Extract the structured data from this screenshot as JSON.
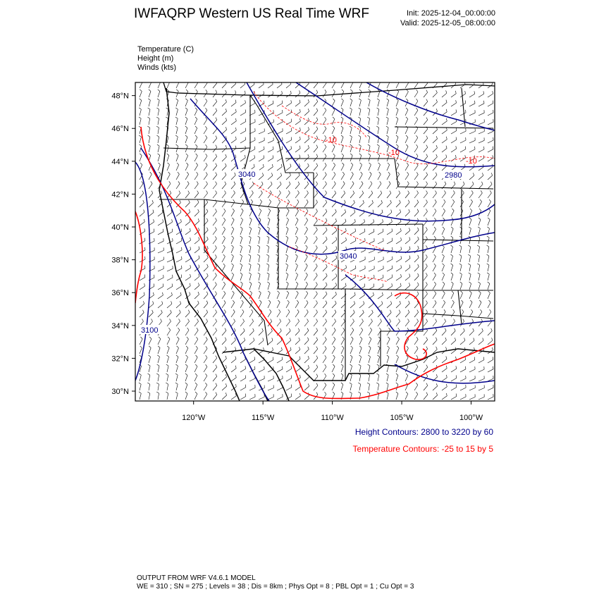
{
  "header": {
    "title": "IWFAQRP Western US Real Time WRF",
    "init": "Init: 2025-12-04_00:00:00",
    "valid": "Valid: 2025-12-05_08:00:00"
  },
  "fields": [
    "Temperature   (C)",
    "Height   (m)",
    "Winds   (kts)"
  ],
  "map": {
    "lon_range": [
      -124.2,
      -98.3
    ],
    "lat_range": [
      29.4,
      48.8
    ],
    "lat_ticks": [
      "30°N",
      "32°N",
      "34°N",
      "36°N",
      "38°N",
      "40°N",
      "42°N",
      "44°N",
      "46°N",
      "48°N"
    ],
    "lon_ticks": [
      "120°W",
      "115°W",
      "110°W",
      "105°W",
      "100°W"
    ],
    "contour_labels": {
      "height": [
        "3040",
        "3040",
        "2980",
        "3100"
      ],
      "temperature": [
        "-10",
        "-10",
        "-10"
      ]
    },
    "colors": {
      "height": "#00008b",
      "temperature": "#ff0000",
      "border": "#000000"
    }
  },
  "legend": {
    "height_contours": "Height Contours: 2800 to 3220 by 60",
    "temperature_contours": "Temperature Contours: -25 to 15 by 5"
  },
  "footer": {
    "line1": "OUTPUT FROM WRF V4.6.1 MODEL",
    "line2": "WE = 310 ; SN = 275 ; Levels = 38 ; Dis = 8km ; Phys Opt = 8 ; PBL Opt = 1 ; Cu Opt = 3"
  }
}
